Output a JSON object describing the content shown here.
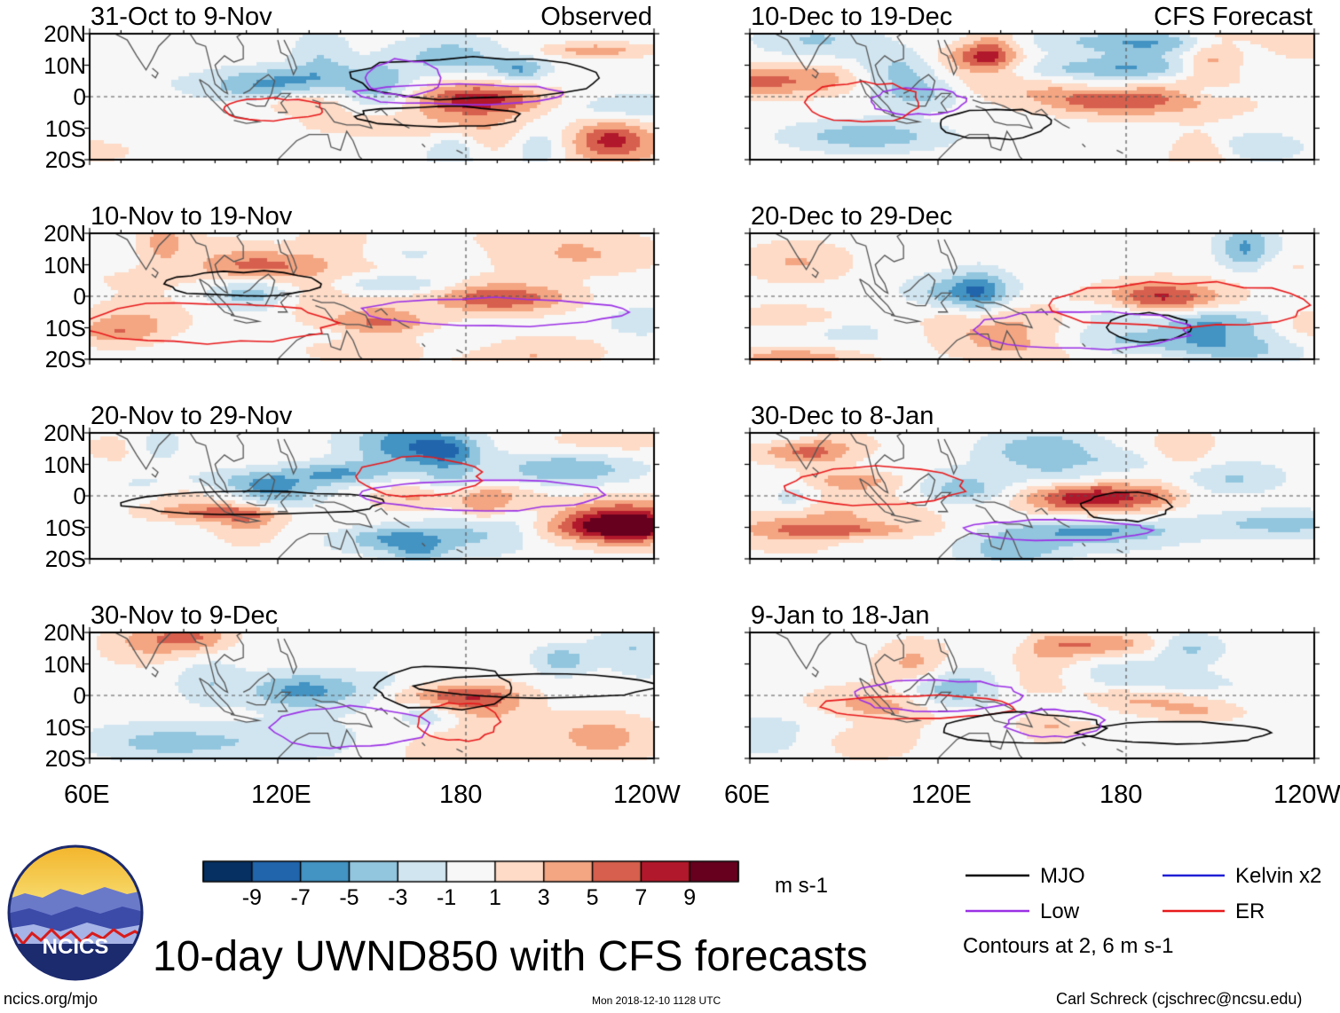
{
  "chart_data": {
    "type": "heatmap",
    "variable": "10-day UWND850 with CFS forecasts",
    "x_ticks": [
      "60E",
      "120E",
      "180",
      "120W"
    ],
    "y_ticks": [
      "20N",
      "10N",
      "0",
      "10S",
      "20S"
    ],
    "x_range_deg": [
      60,
      240
    ],
    "y_range_deg": [
      -20,
      20
    ],
    "left_column_label": "Observed",
    "right_column_label": "CFS Forecast",
    "panels": [
      {
        "title": "31-Oct to 9-Nov",
        "column": "observed"
      },
      {
        "title": "10-Nov to 19-Nov",
        "column": "observed"
      },
      {
        "title": "20-Nov to 29-Nov",
        "column": "observed"
      },
      {
        "title": "30-Nov to 9-Dec",
        "column": "observed"
      },
      {
        "title": "10-Dec to 19-Dec",
        "column": "forecast"
      },
      {
        "title": "20-Dec to 29-Dec",
        "column": "forecast"
      },
      {
        "title": "30-Dec to 8-Jan",
        "column": "forecast"
      },
      {
        "title": "9-Jan to 18-Jan",
        "column": "forecast"
      }
    ],
    "colorbar": {
      "ticks": [
        "-9",
        "-7",
        "-5",
        "-3",
        "-1",
        "1",
        "3",
        "5",
        "7",
        "9"
      ],
      "units": "m s-1",
      "colors": [
        "#053061",
        "#2166ac",
        "#4393c3",
        "#92c5de",
        "#d1e5f0",
        "#f7f7f7",
        "#fddbc7",
        "#f4a582",
        "#d6604d",
        "#b2182b",
        "#67001f"
      ]
    },
    "legend": [
      {
        "label": "MJO",
        "color": "#000000"
      },
      {
        "label": "Kelvin x2",
        "color": "#1f1fd6"
      },
      {
        "label": "Low",
        "color": "#9b30e6"
      },
      {
        "label": "ER",
        "color": "#e8191b"
      }
    ],
    "contour_note": "Contours at 2, 6 m s-1"
  },
  "footer": {
    "logo_text": "NCICS",
    "site": "ncics.org/mjo",
    "timestamp": "Mon 2018-12-10 1128 UTC",
    "author": "Carl Schreck (cjschrec@ncsu.edu)"
  }
}
